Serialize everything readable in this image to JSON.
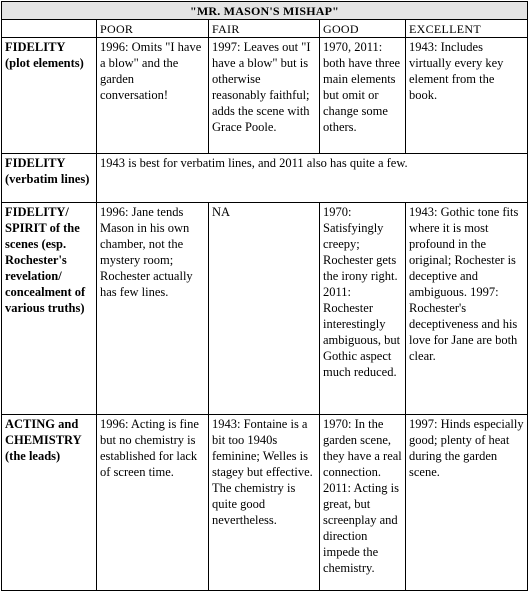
{
  "title": "\"MR. MASON'S MISHAP\"",
  "columns": [
    "POOR",
    "FAIR",
    "GOOD",
    "EXCELLENT"
  ],
  "rows": [
    {
      "label": "FIDELITY (plot elements)",
      "cells": [
        "1996: Omits \"I have a blow\" and the garden conversation!",
        "1997: Leaves out \"I have a blow\" but is otherwise reasonably faithful; adds the scene with Grace Poole.",
        "1970, 2011: both have three main elements but omit or change some others.",
        "1943: Includes virtually every key element from the book."
      ]
    },
    {
      "label": "FIDELITY (verbatim lines)",
      "span_text": "1943 is best for verbatim lines, and 2011 also has quite a few."
    },
    {
      "label": "FIDELITY/ SPIRIT of the scenes (esp. Rochester's revelation/ concealment of various truths)",
      "cells": [
        "1996: Jane tends Mason in his own chamber, not the mystery room; Rochester actually has few lines.",
        "NA",
        "1970: Satisfyingly creepy; Rochester gets the irony right. 2011: Rochester interestingly ambiguous, but Gothic aspect much reduced.",
        "1943: Gothic tone fits where it is most profound in the original; Rochester is deceptive and ambiguous. 1997: Rochester's deceptiveness and his love for Jane are both clear."
      ]
    },
    {
      "label": "ACTING and CHEMISTRY (the leads)",
      "cells": [
        "1996: Acting is fine but no chemistry is established for lack of screen time.",
        "1943: Fontaine is a bit too 1940s feminine; Welles is stagey but effective. The chemistry is quite good nevertheless.",
        "1970: In the garden scene, they have a real connection. 2011: Acting is great, but screenplay and direction impede the chemistry.",
        "1997: Hinds especially good; plenty of heat during the garden scene."
      ]
    }
  ]
}
